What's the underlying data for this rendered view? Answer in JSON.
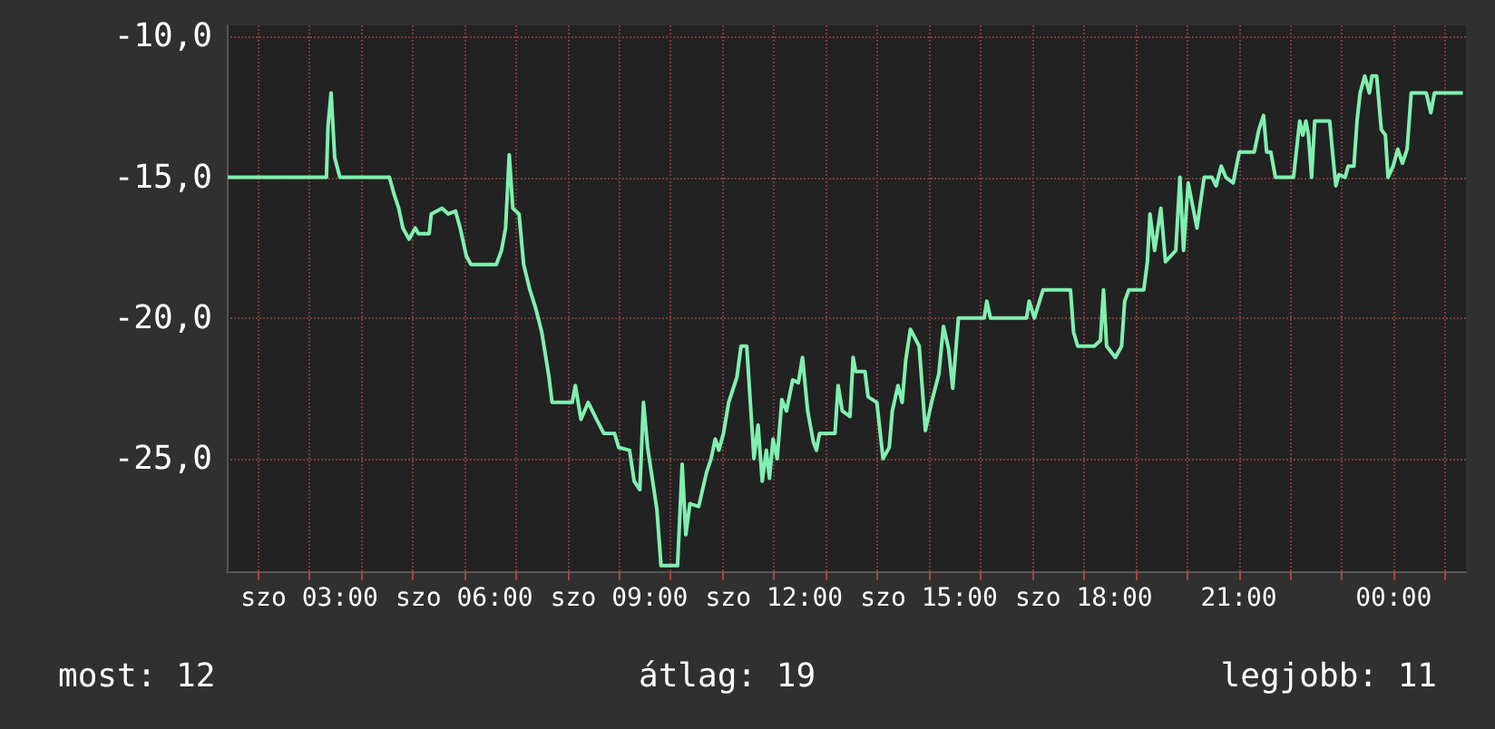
{
  "chart_data": {
    "type": "line",
    "xlim": [
      1.4,
      25.4
    ],
    "xticks": [
      {
        "value": 2,
        "label": null
      },
      {
        "value": 3,
        "label": "szo 03:00"
      },
      {
        "value": 4,
        "label": null
      },
      {
        "value": 5,
        "label": null
      },
      {
        "value": 6,
        "label": "szo 06:00"
      },
      {
        "value": 7,
        "label": null
      },
      {
        "value": 8,
        "label": null
      },
      {
        "value": 9,
        "label": "szo 09:00"
      },
      {
        "value": 10,
        "label": null
      },
      {
        "value": 11,
        "label": null
      },
      {
        "value": 12,
        "label": "szo 12:00"
      },
      {
        "value": 13,
        "label": null
      },
      {
        "value": 14,
        "label": null
      },
      {
        "value": 15,
        "label": "szo 15:00"
      },
      {
        "value": 16,
        "label": null
      },
      {
        "value": 17,
        "label": null
      },
      {
        "value": 18,
        "label": "szo 18:00"
      },
      {
        "value": 19,
        "label": null
      },
      {
        "value": 20,
        "label": null
      },
      {
        "value": 21,
        "label": "21:00"
      },
      {
        "value": 22,
        "label": null
      },
      {
        "value": 23,
        "label": null
      },
      {
        "value": 24,
        "label": "00:00"
      },
      {
        "value": 25,
        "label": null
      }
    ],
    "ylim": [
      -29,
      -9.6
    ],
    "yticks": [
      {
        "value": -10,
        "label": "-10,0"
      },
      {
        "value": -15,
        "label": "-15,0"
      },
      {
        "value": -20,
        "label": "-20,0"
      },
      {
        "value": -25,
        "label": "-25,0"
      }
    ],
    "grid": true,
    "marker": "none",
    "line_style": "solid",
    "annotations": [
      "most: 12",
      "átlag: 19",
      "legjobb: 11"
    ],
    "series": [
      {
        "color": "#80f0b0",
        "x": [
          1.42,
          3.33,
          3.36,
          3.42,
          3.49,
          3.59,
          4.55,
          4.64,
          4.73,
          4.81,
          4.93,
          5.05,
          5.11,
          5.32,
          5.36,
          5.57,
          5.69,
          5.83,
          5.92,
          6.04,
          6.13,
          6.62,
          6.72,
          6.8,
          6.87,
          6.94,
          7.06,
          7.15,
          7.27,
          7.39,
          7.5,
          7.64,
          7.7,
          8.09,
          8.15,
          8.26,
          8.4,
          8.56,
          8.7,
          8.91,
          8.99,
          9.2,
          9.29,
          9.4,
          9.47,
          9.55,
          9.64,
          9.73,
          9.81,
          10.13,
          10.22,
          10.29,
          10.37,
          10.54,
          10.69,
          10.78,
          10.86,
          10.93,
          11.02,
          11.12,
          11.28,
          11.36,
          11.47,
          11.54,
          11.61,
          11.69,
          11.77,
          11.85,
          11.91,
          11.98,
          12.06,
          12.15,
          12.24,
          12.36,
          12.47,
          12.55,
          12.65,
          12.76,
          12.82,
          12.88,
          13.18,
          13.24,
          13.32,
          13.47,
          13.53,
          13.58,
          13.76,
          13.82,
          13.99,
          14.11,
          14.23,
          14.29,
          14.4,
          14.48,
          14.55,
          14.64,
          14.81,
          14.93,
          15.05,
          15.19,
          15.28,
          15.38,
          15.46,
          15.57,
          16.07,
          16.12,
          16.19,
          16.89,
          16.94,
          17.04,
          17.21,
          17.74,
          17.8,
          17.88,
          18.2,
          18.32,
          18.38,
          18.44,
          18.61,
          18.73,
          18.79,
          18.87,
          19.16,
          19.23,
          19.28,
          19.37,
          19.49,
          19.58,
          19.78,
          19.86,
          19.93,
          20.02,
          20.19,
          20.25,
          20.33,
          20.48,
          20.56,
          20.66,
          20.75,
          20.89,
          21.01,
          21.3,
          21.39,
          21.48,
          21.54,
          21.62,
          21.71,
          22.06,
          22.18,
          22.24,
          22.3,
          22.35,
          22.41,
          22.47,
          22.76,
          22.82,
          22.88,
          22.94,
          23.06,
          23.12,
          23.23,
          23.29,
          23.35,
          23.44,
          23.53,
          23.58,
          23.67,
          23.76,
          23.84,
          23.89,
          23.99,
          24.08,
          24.17,
          24.26,
          24.34,
          24.63,
          24.72,
          24.79,
          25.34
        ],
        "values": [
          -15,
          -15,
          -13.2,
          -12,
          -14.3,
          -15,
          -15,
          -15.6,
          -16.1,
          -16.8,
          -17.2,
          -16.8,
          -17,
          -17,
          -16.3,
          -16.1,
          -16.3,
          -16.2,
          -16.8,
          -17.8,
          -18.1,
          -18.1,
          -17.6,
          -16.8,
          -14.2,
          -16.1,
          -16.3,
          -18.1,
          -19,
          -19.7,
          -20.5,
          -22.1,
          -23,
          -23,
          -22.4,
          -23.6,
          -23,
          -23.6,
          -24.1,
          -24.1,
          -24.6,
          -24.7,
          -25.8,
          -26.1,
          -23,
          -24.6,
          -25.7,
          -26.8,
          -28.8,
          -28.8,
          -25.2,
          -27.7,
          -26.6,
          -26.7,
          -25.5,
          -25,
          -24.3,
          -24.7,
          -24.1,
          -23,
          -22.1,
          -21,
          -21,
          -23,
          -25,
          -23.8,
          -25.8,
          -24.7,
          -25.7,
          -24.3,
          -25,
          -22.9,
          -23.3,
          -22.2,
          -22.3,
          -21.4,
          -23.3,
          -24.4,
          -24.7,
          -24.1,
          -24.1,
          -22.4,
          -23.3,
          -23.5,
          -21.4,
          -21.9,
          -21.9,
          -22.8,
          -23,
          -25,
          -24.6,
          -23.3,
          -22.4,
          -23,
          -21.5,
          -20.4,
          -21,
          -24,
          -23,
          -22,
          -20.3,
          -21.1,
          -22.5,
          -20,
          -20,
          -19.4,
          -20,
          -20,
          -19.4,
          -20,
          -19,
          -19,
          -20.5,
          -21,
          -21,
          -20.8,
          -19,
          -21,
          -21.4,
          -21,
          -19.4,
          -19,
          -19,
          -18,
          -16.3,
          -17.6,
          -16.1,
          -18,
          -17.6,
          -15,
          -17.6,
          -15.2,
          -16.8,
          -16,
          -15,
          -15,
          -15.3,
          -14.6,
          -15,
          -15.2,
          -14.1,
          -14.1,
          -13.3,
          -12.8,
          -14.1,
          -14.1,
          -15,
          -15,
          -13,
          -13.5,
          -13,
          -13.5,
          -15,
          -13,
          -13,
          -14.2,
          -15.3,
          -14.9,
          -15,
          -14.6,
          -14.6,
          -13,
          -12,
          -11.4,
          -12,
          -11.4,
          -11.4,
          -13.3,
          -13.5,
          -15,
          -14.6,
          -14,
          -14.5,
          -14,
          -12,
          -12,
          -12.7,
          -12,
          -12
        ]
      }
    ]
  }
}
